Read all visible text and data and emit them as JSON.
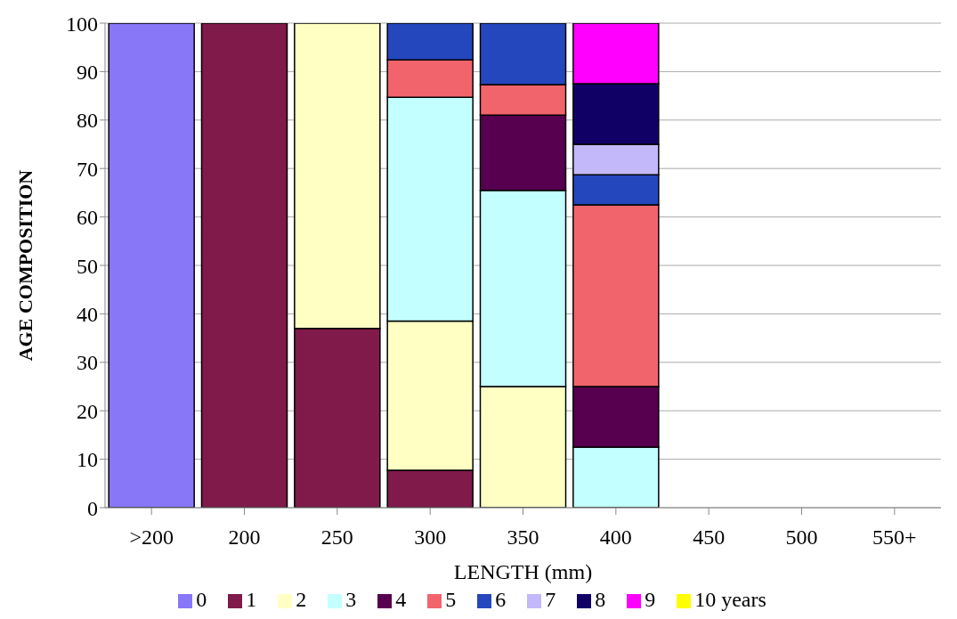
{
  "chart_data": {
    "type": "bar",
    "stacked": true,
    "xlabel": "LENGTH (mm)",
    "ylabel": "AGE COMPOSITION",
    "categories": [
      ">200",
      "200",
      "250",
      "300",
      "350",
      "400",
      "450",
      "500",
      "550+"
    ],
    "ylim": [
      0,
      100
    ],
    "yticks": [
      0,
      10,
      20,
      30,
      40,
      50,
      60,
      70,
      80,
      90,
      100
    ],
    "grid": "y",
    "legend": "bottom",
    "series": [
      {
        "name": "0",
        "color": "#8877f7",
        "values": [
          100,
          null,
          null,
          null,
          null,
          null,
          null,
          null,
          null
        ]
      },
      {
        "name": "1",
        "color": "#7f1a4b",
        "values": [
          null,
          100,
          37,
          7.7,
          null,
          null,
          null,
          null,
          null
        ]
      },
      {
        "name": "2",
        "color": "#ffffc4",
        "values": [
          null,
          null,
          63,
          30.8,
          25,
          null,
          null,
          null,
          null
        ]
      },
      {
        "name": "3",
        "color": "#c4ffff",
        "values": [
          null,
          null,
          null,
          46.2,
          40.5,
          12.5,
          null,
          null,
          null
        ]
      },
      {
        "name": "4",
        "color": "#57004f",
        "values": [
          null,
          null,
          null,
          null,
          15.5,
          12.5,
          null,
          null,
          null
        ]
      },
      {
        "name": "5",
        "color": "#f2646c",
        "values": [
          null,
          null,
          null,
          7.7,
          6.3,
          37.5,
          null,
          null,
          null
        ]
      },
      {
        "name": "6",
        "color": "#2547bd",
        "values": [
          null,
          null,
          null,
          7.6,
          12.7,
          6.2,
          null,
          null,
          null
        ]
      },
      {
        "name": "7",
        "color": "#c2b8fa",
        "values": [
          null,
          null,
          null,
          null,
          null,
          6.3,
          null,
          null,
          null
        ]
      },
      {
        "name": "8",
        "color": "#100066",
        "values": [
          null,
          null,
          null,
          null,
          null,
          12.5,
          null,
          null,
          null
        ]
      },
      {
        "name": "9",
        "color": "#ff00ff",
        "values": [
          null,
          null,
          null,
          null,
          null,
          12.5,
          null,
          null,
          null
        ]
      },
      {
        "name": "10 years",
        "color": "#ffff00",
        "values": [
          null,
          null,
          null,
          null,
          null,
          null,
          null,
          null,
          null
        ]
      }
    ]
  }
}
